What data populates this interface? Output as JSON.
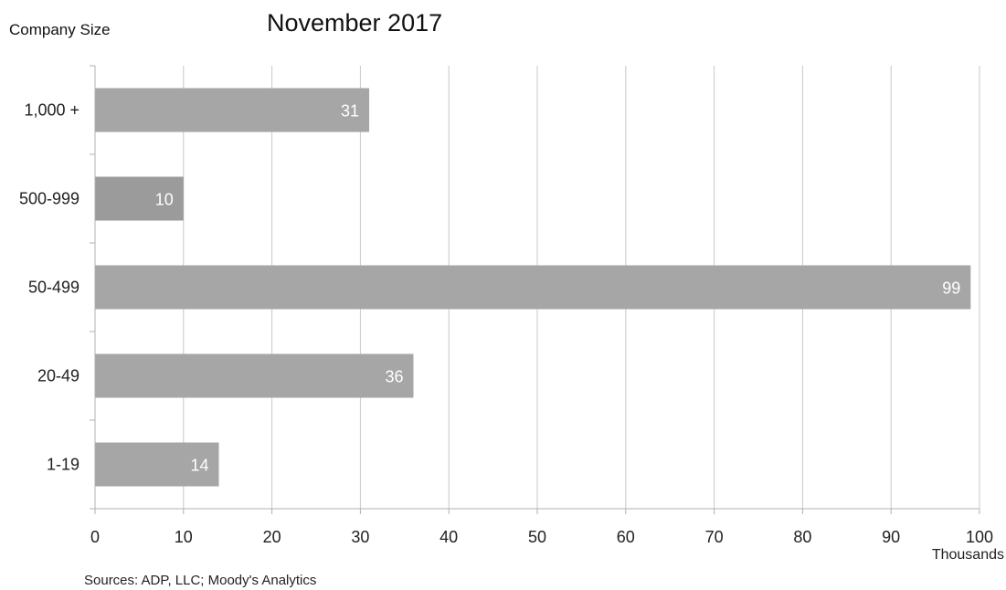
{
  "chart_data": {
    "type": "bar",
    "orientation": "horizontal",
    "title": "November 2017",
    "ylabel": "Company Size",
    "x_unit": "Thousands",
    "source": "Sources: ADP, LLC; Moody's Analytics",
    "categories": [
      "1,000 +",
      "500-999",
      "50-499",
      "20-49",
      "1-19"
    ],
    "values": [
      31,
      10,
      99,
      36,
      14
    ],
    "data_labels": [
      "31",
      "10",
      "99",
      "36",
      "14"
    ],
    "xlim": [
      0,
      100
    ],
    "x_ticks": [
      0,
      10,
      20,
      30,
      40,
      50,
      60,
      70,
      80,
      90,
      100
    ],
    "x_tick_labels": [
      "0",
      "10",
      "20",
      "30",
      "40",
      "50",
      "60",
      "70",
      "80",
      "90",
      "100"
    ],
    "grid": "vertical",
    "legend": "none",
    "colors": {
      "bar": "#a6a6a6",
      "bar_dark": "#9b9b9b",
      "grid": "#c8c8c8",
      "axis": "#b0b0b0",
      "data_label": "#ffffff"
    }
  }
}
